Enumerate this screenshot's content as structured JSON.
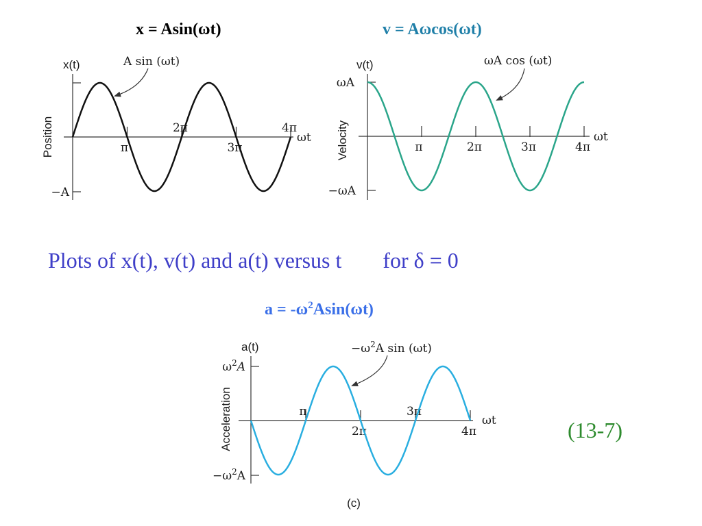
{
  "colors": {
    "title_v": "#1f7fa8",
    "title_a": "#3a6fe8",
    "caption": "#3f3fc8",
    "eqnum": "#2e8b2e",
    "curve_x": "#111111",
    "curve_v": "#2aa58a",
    "curve_a": "#29aee0",
    "axis": "#333333"
  },
  "titles": {
    "x": "x = Asin(ωt)",
    "v": "v = Aωcos(ωt)",
    "a_prefix": "a =  -ω",
    "a_sup": "2",
    "a_suffix": "Asin(ωt)"
  },
  "caption": {
    "part1": "Plots of x(t), v(t) and a(t) versus  t",
    "part2": "for δ = 0"
  },
  "equation_number": "(13-7)",
  "chart_data": [
    {
      "type": "line",
      "ylabel_top": "x(t)",
      "ylabel": "Position",
      "xlabel": "ωt",
      "ytick_pos": "",
      "ytick_neg": "−A",
      "xticks": [
        {
          "label": "π",
          "value": 3.14159,
          "side": "below"
        },
        {
          "label": "2π",
          "value": 6.28318,
          "side": "above"
        },
        {
          "label": "3π",
          "value": 9.42478,
          "side": "below"
        },
        {
          "label": "4π",
          "value": 12.56637,
          "side": "above"
        }
      ],
      "annotation": "A sin (ωt)",
      "series": [
        {
          "function": "sin",
          "amplitude": 1,
          "x": [
            0,
            12.56637
          ]
        }
      ],
      "ylim": [
        -1,
        1
      ]
    },
    {
      "type": "line",
      "ylabel_top": "v(t)",
      "ylabel": "Velocity",
      "xlabel": "ωt",
      "ytick_pos": "ωA",
      "ytick_neg": "−ωA",
      "xticks": [
        {
          "label": "π",
          "value": 3.14159,
          "side": "below"
        },
        {
          "label": "2π",
          "value": 6.28318,
          "side": "below"
        },
        {
          "label": "3π",
          "value": 9.42478,
          "side": "below"
        },
        {
          "label": "4π",
          "value": 12.56637,
          "side": "below"
        }
      ],
      "annotation": "ωA cos (ωt)",
      "series": [
        {
          "function": "cos",
          "amplitude": 1,
          "x": [
            0,
            12.56637
          ]
        }
      ],
      "ylim": [
        -1,
        1
      ]
    },
    {
      "type": "line",
      "ylabel_top": "a(t)",
      "ylabel": "Acceleration",
      "xlabel": "ωt",
      "ytick_pos_base": "ω",
      "ytick_pos_sup": "2",
      "ytick_pos_suffix": "A",
      "ytick_neg_base": "−ω",
      "ytick_neg_sup": "2",
      "ytick_neg_suffix": "A",
      "xticks": [
        {
          "label": "π",
          "value": 3.14159,
          "side": "above"
        },
        {
          "label": "2π",
          "value": 6.28318,
          "side": "below"
        },
        {
          "label": "3π",
          "value": 9.42478,
          "side": "above"
        },
        {
          "label": "4π",
          "value": 12.56637,
          "side": "below"
        }
      ],
      "annotation_base": "−ω",
      "annotation_sup": "2",
      "annotation_suffix": "A sin (ωt)",
      "panel_label": "(c)",
      "series": [
        {
          "function": "-sin",
          "amplitude": 1,
          "x": [
            0,
            12.56637
          ]
        }
      ],
      "ylim": [
        -1,
        1
      ]
    }
  ]
}
